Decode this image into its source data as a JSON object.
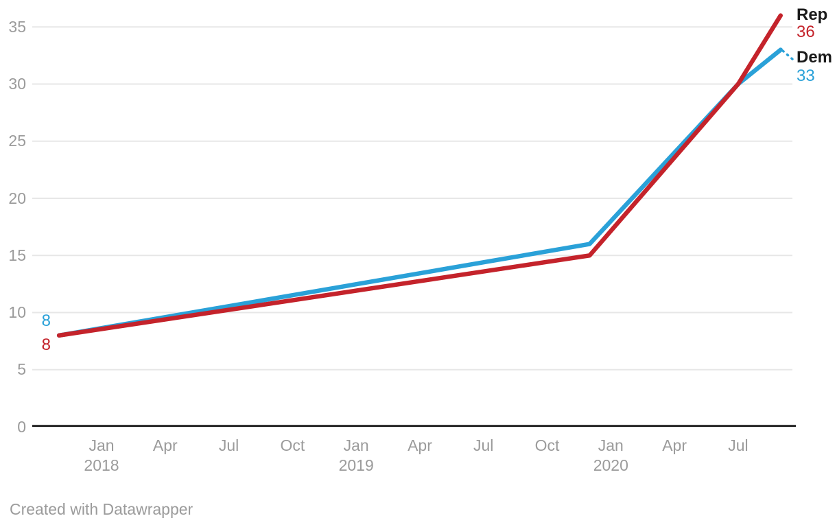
{
  "page": {
    "footer_credit": "Created with Datawrapper"
  },
  "colors": {
    "rep": "#c4232b",
    "dem": "#2aa1d8",
    "axis_text": "#9b9b9b",
    "gridline": "#e7e7e7",
    "axis_line": "#1a1a1a",
    "label_text": "#1a1a1a"
  },
  "chart_data": {
    "type": "line",
    "title": "",
    "grid": "horizontal-gridlines",
    "legend_position": "line-end-labels-right",
    "x_axis": {
      "ticks": [
        {
          "label": "Jan",
          "year_label": "2018",
          "month_index": 0
        },
        {
          "label": "Apr",
          "month_index": 3
        },
        {
          "label": "Jul",
          "month_index": 6
        },
        {
          "label": "Oct",
          "month_index": 9
        },
        {
          "label": "Jan",
          "year_label": "2019",
          "month_index": 12
        },
        {
          "label": "Apr",
          "month_index": 15
        },
        {
          "label": "Jul",
          "month_index": 18
        },
        {
          "label": "Oct",
          "month_index": 21
        },
        {
          "label": "Jan",
          "year_label": "2020",
          "month_index": 24
        },
        {
          "label": "Apr",
          "month_index": 27
        },
        {
          "label": "Jul",
          "month_index": 30
        }
      ]
    },
    "y_axis": {
      "ticks": [
        0,
        5,
        10,
        15,
        20,
        25,
        30,
        35
      ],
      "min": 0,
      "max": 36
    },
    "series": [
      {
        "name": "Dem",
        "color_key": "dem",
        "points": [
          {
            "date": "Nov 2017",
            "month_index": -2,
            "value": 8
          },
          {
            "date": "Dec 2019",
            "month_index": 23,
            "value": 16
          },
          {
            "date": "Jul 2020",
            "month_index": 30,
            "value": 30
          },
          {
            "date": "Sep 2020",
            "month_index": 32,
            "value": 33
          }
        ],
        "start_value_label": "8",
        "end_name_label": "Dem",
        "end_value_label": "33",
        "leader_line": "dashed"
      },
      {
        "name": "Rep",
        "color_key": "rep",
        "points": [
          {
            "date": "Nov 2017",
            "month_index": -2,
            "value": 8
          },
          {
            "date": "Dec 2019",
            "month_index": 23,
            "value": 15
          },
          {
            "date": "Jul 2020",
            "month_index": 30,
            "value": 30
          },
          {
            "date": "Sep 2020",
            "month_index": 32,
            "value": 36
          }
        ],
        "start_value_label": "8",
        "end_name_label": "Rep",
        "end_value_label": "36",
        "leader_line": "none"
      }
    ]
  }
}
